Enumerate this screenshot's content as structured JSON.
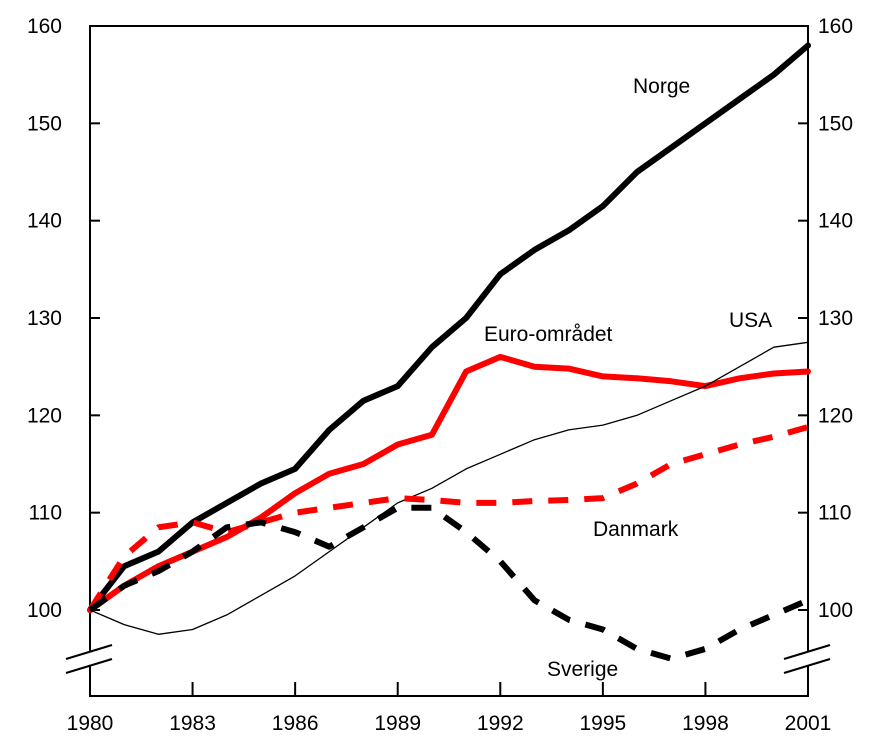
{
  "chart_data": {
    "type": "line",
    "title": "",
    "xlabel": "",
    "ylabel": "",
    "xlim": [
      1980,
      2001
    ],
    "ylim": [
      100,
      160
    ],
    "y_axis_break": true,
    "grid": false,
    "x_ticks": [
      1980,
      1983,
      1986,
      1989,
      1992,
      1995,
      1998,
      2001
    ],
    "x_tick_labels": [
      "1980",
      "1983",
      "1986",
      "1989",
      "1992",
      "1995",
      "1998",
      "2001"
    ],
    "y_ticks": [
      100,
      110,
      120,
      130,
      140,
      150,
      160
    ],
    "y_tick_labels": [
      "100",
      "110",
      "120",
      "130",
      "140",
      "150",
      "160"
    ],
    "series": [
      {
        "name": "Norge",
        "color": "#000000",
        "style": "solid-thick",
        "x": [
          1980,
          1981,
          1982,
          1983,
          1984,
          1985,
          1986,
          1987,
          1988,
          1989,
          1990,
          1991,
          1992,
          1993,
          1994,
          1995,
          1996,
          1997,
          1998,
          1999,
          2000,
          2001
        ],
        "values": [
          100,
          104.5,
          106,
          109,
          111,
          113,
          114.5,
          118.5,
          121.5,
          123,
          127,
          130,
          134.5,
          137,
          139,
          141.5,
          145,
          147.5,
          150,
          152.5,
          155,
          158
        ]
      },
      {
        "name": "Euro-området",
        "color": "#ff0000",
        "style": "solid-thick",
        "x": [
          1980,
          1981,
          1982,
          1983,
          1984,
          1985,
          1986,
          1987,
          1988,
          1989,
          1990,
          1991,
          1992,
          1993,
          1994,
          1995,
          1996,
          1997,
          1998,
          1999,
          2000,
          2001
        ],
        "values": [
          100,
          102.5,
          104.5,
          106,
          107.5,
          109.5,
          112,
          114,
          115,
          117,
          118,
          124.5,
          126,
          125,
          124.8,
          124,
          123.8,
          123.5,
          123,
          123.8,
          124.3,
          124.5
        ]
      },
      {
        "name": "USA",
        "color": "#000000",
        "style": "solid-thin",
        "x": [
          1980,
          1981,
          1982,
          1983,
          1984,
          1985,
          1986,
          1987,
          1988,
          1989,
          1990,
          1991,
          1992,
          1993,
          1994,
          1995,
          1996,
          1997,
          1998,
          1999,
          2000,
          2001
        ],
        "values": [
          100,
          98.5,
          97.5,
          98,
          99.5,
          101.5,
          103.5,
          106,
          108.5,
          111,
          112.5,
          114.5,
          116,
          117.5,
          118.5,
          119,
          120,
          121.5,
          123,
          125,
          127,
          127.5
        ]
      },
      {
        "name": "Danmark",
        "color": "#ff0000",
        "style": "dashed-thick",
        "x": [
          1980,
          1981,
          1982,
          1983,
          1984,
          1985,
          1986,
          1987,
          1988,
          1989,
          1990,
          1991,
          1992,
          1993,
          1994,
          1995,
          1996,
          1997,
          1998,
          1999,
          2000,
          2001
        ],
        "values": [
          100,
          105.5,
          108.5,
          109,
          108,
          109,
          110,
          110.5,
          111,
          111.5,
          111.3,
          111,
          111,
          111.2,
          111.3,
          111.5,
          113,
          115,
          116,
          117,
          117.8,
          118.8
        ]
      },
      {
        "name": "Sverige",
        "color": "#000000",
        "style": "dashed-thick",
        "x": [
          1980,
          1981,
          1982,
          1983,
          1984,
          1985,
          1986,
          1987,
          1988,
          1989,
          1990,
          1991,
          1992,
          1993,
          1994,
          1995,
          1996,
          1997,
          1998,
          1999,
          2000,
          2001
        ],
        "values": [
          100,
          102.5,
          104,
          106,
          108.5,
          109,
          108,
          106.5,
          108.5,
          110.5,
          110.5,
          108,
          105,
          101,
          99,
          98,
          96,
          95,
          96,
          98,
          99.5,
          101
        ]
      }
    ]
  }
}
